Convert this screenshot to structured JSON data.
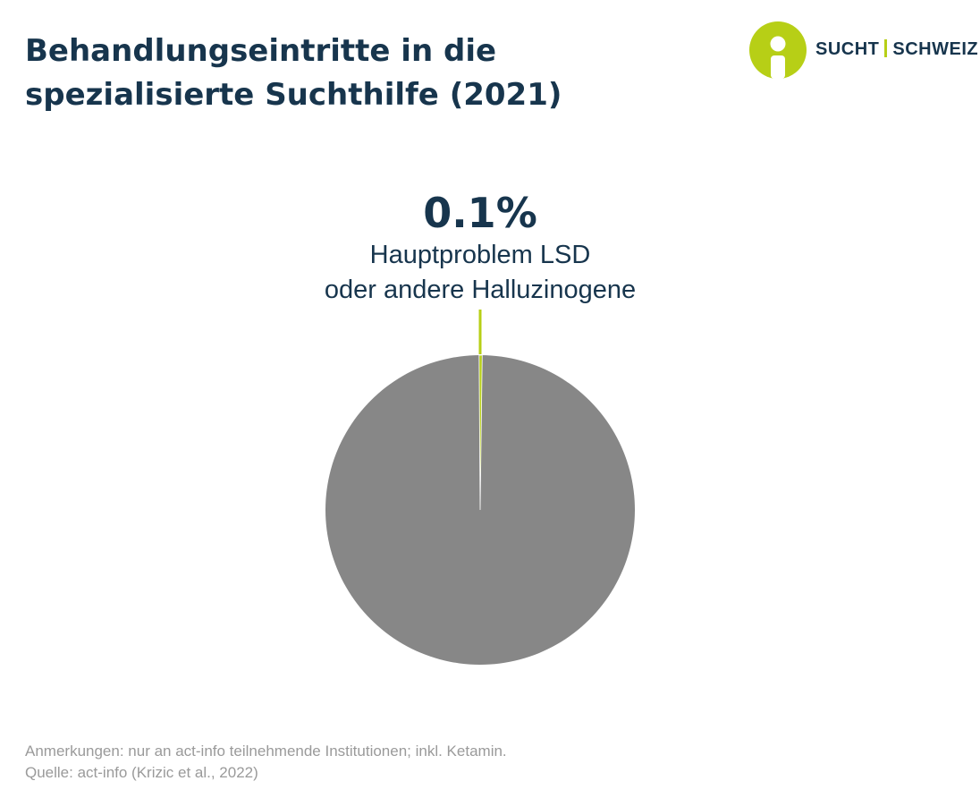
{
  "header": {
    "title_line1": "Behandlungseintritte in die",
    "title_line2": "spezialisierte Suchthilfe (2021)"
  },
  "brand": {
    "name_left": "SUCHT",
    "name_right": "SCHWEIZ",
    "icon": "person-circle-logo-icon",
    "color": "#b7cf16"
  },
  "chart_data": {
    "type": "pie",
    "slices": [
      {
        "label": "Hauptproblem LSD oder andere Halluzinogene",
        "value": 0.1,
        "color": "#b7cf16",
        "highlight": true
      },
      {
        "label": "",
        "value": 99.9,
        "color": "#878787",
        "highlight": false
      }
    ],
    "annotation": {
      "value_text": "0.1%",
      "label_line1": "Hauptproblem LSD",
      "label_line2": "oder andere Halluzinogene"
    }
  },
  "footer": {
    "note": "Anmerkungen: nur an act-info teilnehmende Institutionen; inkl. Ketamin.",
    "source": "Quelle: act-info (Krizic et al., 2022)"
  },
  "colors": {
    "title": "#17354d",
    "accent": "#b7cf16",
    "pie_rest": "#878787",
    "footer_text": "#9a9a9a"
  }
}
